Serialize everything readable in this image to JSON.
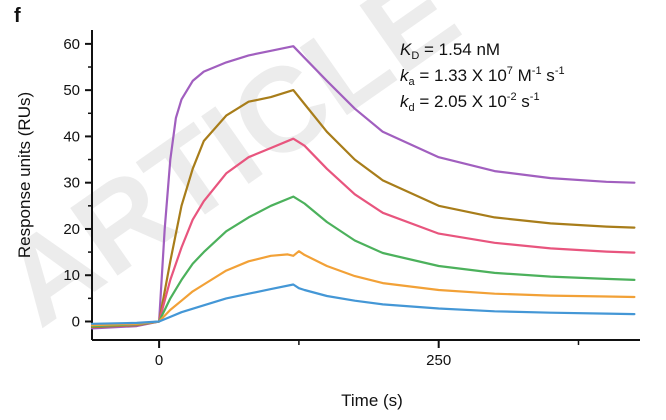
{
  "panel_label": "f",
  "watermark": "ARTICLE",
  "kinetics": {
    "kd_symbol": "K",
    "kd_sub": "D",
    "kd_value": " = 1.54 nM",
    "ka_symbol": "k",
    "ka_sub": "a",
    "ka_value": " = 1.33 X 10",
    "ka_exp": "7",
    "ka_unit1": " M",
    "ka_unit1_exp": "-1",
    "ka_unit2": " s",
    "ka_unit2_exp": "-1",
    "kdiss_symbol": "k",
    "kdiss_sub": "d",
    "kdiss_value": " = 2.05 X 10",
    "kdiss_exp": "-2",
    "kdiss_unit": " s",
    "kdiss_unit_exp": "-1"
  },
  "chart_data": {
    "type": "line",
    "title": "",
    "xlabel": "Time (s)",
    "ylabel": "Response units (RUs)",
    "xlim": [
      -60,
      430
    ],
    "ylim": [
      -4,
      63
    ],
    "xticks": [
      0,
      250
    ],
    "yticks": [
      0,
      10,
      20,
      30,
      40,
      50,
      60
    ],
    "grid": false,
    "legend": "none",
    "series": [
      {
        "color": "#a15fbf",
        "x": [
          -60,
          -20,
          0,
          5,
          10,
          15,
          20,
          30,
          40,
          60,
          80,
          100,
          120,
          130,
          150,
          175,
          200,
          250,
          300,
          350,
          400,
          425
        ],
        "y": [
          -1.5,
          -1,
          0,
          20,
          35,
          44,
          48,
          52,
          54,
          56,
          57.5,
          58.5,
          59.5,
          57,
          52,
          46,
          41,
          35.5,
          32.5,
          31,
          30.2,
          30
        ]
      },
      {
        "color": "#a87d1a",
        "x": [
          -60,
          -20,
          0,
          10,
          20,
          30,
          40,
          60,
          80,
          100,
          120,
          130,
          150,
          175,
          200,
          250,
          300,
          350,
          400,
          425
        ],
        "y": [
          -1.2,
          -0.8,
          0,
          13,
          25,
          33,
          39,
          44.5,
          47.5,
          48.5,
          50,
          47,
          41,
          35,
          30.5,
          25,
          22.5,
          21.2,
          20.5,
          20.3
        ]
      },
      {
        "color": "#e8557e",
        "x": [
          -60,
          -20,
          0,
          10,
          20,
          30,
          40,
          60,
          80,
          100,
          120,
          130,
          150,
          175,
          200,
          250,
          300,
          350,
          400,
          425
        ],
        "y": [
          -1,
          -0.7,
          0,
          9,
          16,
          22,
          26,
          32,
          35.5,
          37.5,
          39.5,
          38,
          33,
          27.5,
          23.5,
          19,
          17,
          15.8,
          15.1,
          14.9
        ]
      },
      {
        "color": "#4cb15c",
        "x": [
          -60,
          -20,
          0,
          10,
          20,
          30,
          40,
          60,
          80,
          100,
          120,
          130,
          150,
          175,
          200,
          250,
          300,
          350,
          400,
          425
        ],
        "y": [
          -1,
          -0.6,
          0,
          5,
          9,
          12.5,
          15,
          19.5,
          22.5,
          25,
          27,
          25.5,
          21.5,
          17.5,
          14.8,
          12,
          10.5,
          9.7,
          9.2,
          9
        ]
      },
      {
        "color": "#f2a137",
        "x": [
          -60,
          -20,
          0,
          10,
          20,
          30,
          40,
          60,
          80,
          100,
          115,
          120,
          125,
          130,
          150,
          175,
          200,
          250,
          300,
          350,
          400,
          425
        ],
        "y": [
          -0.8,
          -0.5,
          0,
          2.5,
          4.5,
          6.5,
          8,
          11,
          13,
          14.2,
          14.5,
          14.2,
          15.2,
          14.4,
          12,
          9.8,
          8.3,
          6.8,
          6,
          5.6,
          5.4,
          5.3
        ]
      },
      {
        "color": "#4497d6",
        "x": [
          -60,
          -20,
          0,
          10,
          20,
          40,
          60,
          80,
          100,
          120,
          125,
          130,
          150,
          175,
          200,
          250,
          300,
          350,
          400,
          425
        ],
        "y": [
          -0.5,
          -0.3,
          0,
          1,
          2,
          3.5,
          5,
          6,
          7,
          8,
          7.2,
          6.8,
          5.5,
          4.5,
          3.7,
          2.8,
          2.2,
          1.9,
          1.7,
          1.6
        ]
      }
    ]
  }
}
